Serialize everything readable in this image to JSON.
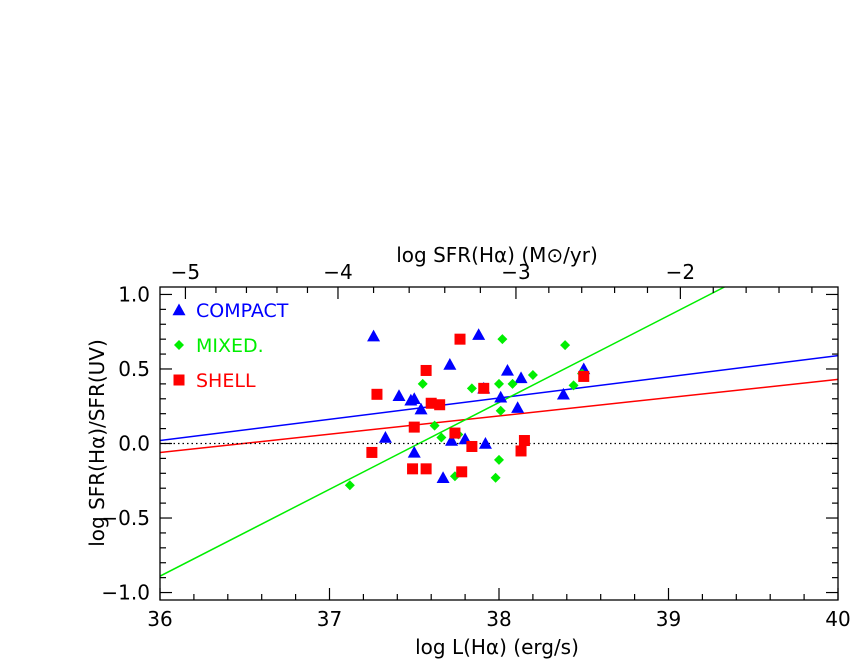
{
  "chart_data": {
    "type": "scatter",
    "xlabel": "log L(Hα) (erg/s)",
    "ylabel": "log SFR(Hα)/SFR(UV)",
    "top_xlabel": "log SFR(Hα) (M⊙/yr)",
    "xlim": [
      36,
      40
    ],
    "ylim": [
      -1.05,
      1.05
    ],
    "x_ticks": [
      "36",
      "37",
      "38",
      "39",
      "40"
    ],
    "y_ticks": [
      "−1.0",
      "−0.5",
      "0.0",
      "0.5",
      "1.0"
    ],
    "top_ticks": [
      "−5",
      "−4",
      "−3",
      "−2"
    ],
    "top_tick_positions_x": [
      36.15,
      37.05,
      38.1,
      39.07
    ],
    "zero_line": 0.0,
    "legend_position": "top-left",
    "series": [
      {
        "name": "COMPACT",
        "marker": "triangle",
        "color": "#0000ff",
        "points": [
          [
            37.26,
            0.72
          ],
          [
            37.33,
            0.04
          ],
          [
            37.41,
            0.32
          ],
          [
            37.48,
            0.29
          ],
          [
            37.5,
            0.3
          ],
          [
            37.5,
            -0.06
          ],
          [
            37.54,
            0.23
          ],
          [
            37.67,
            -0.23
          ],
          [
            37.71,
            0.53
          ],
          [
            37.72,
            0.02
          ],
          [
            37.8,
            0.03
          ],
          [
            37.88,
            0.73
          ],
          [
            37.91,
            0.37
          ],
          [
            37.92,
            0.0
          ],
          [
            38.01,
            0.31
          ],
          [
            38.05,
            0.49
          ],
          [
            38.11,
            0.24
          ],
          [
            38.13,
            0.44
          ],
          [
            38.38,
            0.33
          ],
          [
            38.5,
            0.5
          ]
        ]
      },
      {
        "name": "MIXED.",
        "marker": "diamond",
        "color": "#00ee00",
        "points": [
          [
            37.12,
            -0.28
          ],
          [
            37.55,
            0.4
          ],
          [
            37.62,
            0.12
          ],
          [
            37.66,
            0.04
          ],
          [
            37.74,
            -0.22
          ],
          [
            37.76,
            0.06
          ],
          [
            37.84,
            0.37
          ],
          [
            37.98,
            -0.23
          ],
          [
            38.0,
            -0.11
          ],
          [
            38.0,
            0.4
          ],
          [
            38.01,
            0.22
          ],
          [
            38.02,
            0.7
          ],
          [
            38.08,
            0.4
          ],
          [
            38.2,
            0.46
          ],
          [
            38.39,
            0.66
          ],
          [
            38.44,
            0.39
          ],
          [
            38.49,
            0.47
          ]
        ]
      },
      {
        "name": "SHELL",
        "marker": "square",
        "color": "#ff0000",
        "points": [
          [
            37.25,
            -0.06
          ],
          [
            37.28,
            0.33
          ],
          [
            37.49,
            -0.17
          ],
          [
            37.5,
            0.11
          ],
          [
            37.57,
            0.49
          ],
          [
            37.57,
            -0.17
          ],
          [
            37.6,
            0.27
          ],
          [
            37.65,
            0.26
          ],
          [
            37.74,
            0.07
          ],
          [
            37.77,
            0.7
          ],
          [
            37.78,
            -0.19
          ],
          [
            37.84,
            -0.02
          ],
          [
            37.91,
            0.37
          ],
          [
            38.13,
            -0.05
          ],
          [
            38.15,
            0.02
          ],
          [
            38.5,
            0.45
          ]
        ]
      }
    ],
    "fit_lines": [
      {
        "name": "COMPACT",
        "color": "#0000ff",
        "x": [
          36,
          40
        ],
        "y": [
          0.02,
          0.59
        ]
      },
      {
        "name": "SHELL",
        "color": "#ff0000",
        "x": [
          36,
          40
        ],
        "y": [
          -0.06,
          0.43
        ]
      },
      {
        "name": "MIXED.",
        "color": "#00ee00",
        "x": [
          36,
          39.33
        ],
        "y": [
          -0.89,
          1.05
        ]
      }
    ]
  }
}
